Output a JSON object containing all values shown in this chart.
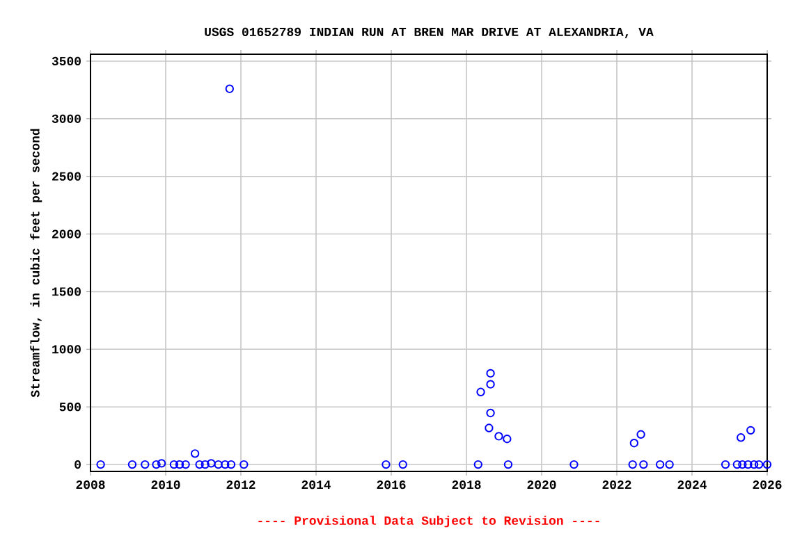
{
  "chart_data": {
    "type": "scatter",
    "title": "USGS 01652789 INDIAN RUN AT BREN MAR DRIVE AT ALEXANDRIA, VA",
    "ylabel": "Streamflow, in cubic feet per second",
    "annotations": [
      "---- Provisional Data Subject to Revision ----"
    ],
    "x": [
      2008.27,
      2009.11,
      2009.45,
      2009.75,
      2009.89,
      2010.22,
      2010.37,
      2010.53,
      2010.78,
      2010.9,
      2011.05,
      2011.21,
      2011.4,
      2011.58,
      2011.7,
      2011.74,
      2012.08,
      2015.86,
      2016.31,
      2018.31,
      2018.38,
      2018.64,
      2018.64,
      2018.64,
      2018.6,
      2018.86,
      2019.08,
      2019.11,
      2020.86,
      2022.42,
      2022.46,
      2022.64,
      2022.71,
      2023.15,
      2023.4,
      2024.89,
      2025.2,
      2025.3,
      2025.34,
      2025.49,
      2025.56,
      2025.65,
      2025.78,
      2026.0
    ],
    "values": [
      0,
      0,
      0,
      0,
      10,
      0,
      0,
      0,
      95,
      0,
      0,
      10,
      0,
      0,
      3260,
      0,
      0,
      0,
      0,
      0,
      629,
      791,
      696,
      447,
      317,
      245,
      222,
      0,
      0,
      0,
      186,
      261,
      0,
      0,
      0,
      0,
      0,
      234,
      0,
      0,
      297,
      0,
      0,
      0
    ],
    "color": "#0000ff",
    "marker": "circle",
    "xlim": [
      2008,
      2026
    ],
    "ylim": [
      -60,
      3560
    ],
    "xticks": [
      2008,
      2010,
      2012,
      2014,
      2016,
      2018,
      2020,
      2022,
      2024,
      2026
    ],
    "yticks": [
      0,
      500,
      1000,
      1500,
      2000,
      2500,
      3000,
      3500
    ],
    "grid": true
  }
}
